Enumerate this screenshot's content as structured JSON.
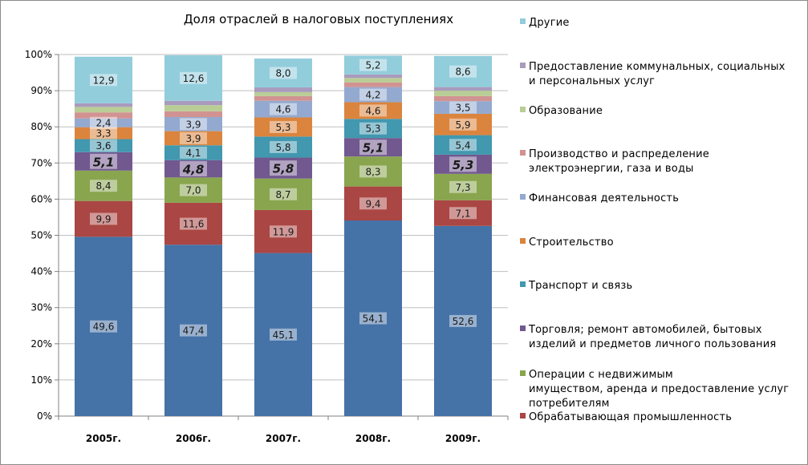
{
  "chart_data": {
    "type": "bar",
    "stacked": true,
    "percent": true,
    "title": "Доля отраслей в налоговых поступлениях",
    "categories": [
      "2005г.",
      "2006г.",
      "2007г.",
      "2008г.",
      "2009г."
    ],
    "yticks": [
      "0%",
      "10%",
      "20%",
      "30%",
      "40%",
      "50%",
      "60%",
      "70%",
      "80%",
      "90%",
      "100%"
    ],
    "ylim": [
      0,
      100
    ],
    "grid": true,
    "legend_position": "right",
    "series": [
      {
        "name": "Обрабатывающая промышленность",
        "color": "#4572A7",
        "values": [
          49.6,
          47.4,
          45.1,
          54.1,
          52.6
        ],
        "labels": [
          "49,6",
          "47,4",
          "45,1",
          "54,1",
          "52,6"
        ]
      },
      {
        "name": "Операции с недвижимым имуществом, аренда и предоставление услуг потребителям",
        "color": "#AA4643",
        "values": [
          9.9,
          11.6,
          11.9,
          9.4,
          7.1
        ],
        "labels": [
          "9,9",
          "11,6",
          "11,9",
          "9,4",
          "7,1"
        ]
      },
      {
        "name": "Торговля; ремонт автомобилей, бытовых изделий и предметов личного пользования",
        "color": "#89A54E",
        "values": [
          8.4,
          7.0,
          8.7,
          8.3,
          7.3
        ],
        "labels": [
          "8,4",
          "7,0",
          "8,7",
          "8,3",
          "7,3"
        ]
      },
      {
        "name": "Транспорт и связь",
        "color": "#71588F",
        "values": [
          5.1,
          4.8,
          5.8,
          5.1,
          5.3
        ],
        "labels": [
          "5,1",
          "4,8",
          "5,8",
          "5,1",
          "5,3"
        ]
      },
      {
        "name": "Строительство",
        "color": "#4198AF",
        "values": [
          3.6,
          4.1,
          5.8,
          5.3,
          5.4
        ],
        "labels": [
          "3,6",
          "4,1",
          "5,8",
          "5,3",
          "5,4"
        ]
      },
      {
        "name": "Финансовая деятельность",
        "color": "#DB843D",
        "values": [
          3.3,
          3.9,
          5.3,
          4.6,
          5.9
        ],
        "labels": [
          "3,3",
          "3,9",
          "5,3",
          "4,6",
          "5,9"
        ]
      },
      {
        "name": "Производство и распределение электроэнергии, газа и воды",
        "color": "#93A9CF",
        "values": [
          2.4,
          3.9,
          4.6,
          4.2,
          3.5
        ],
        "labels": [
          "2,4",
          "3,9",
          "4,6",
          "4,2",
          "3,5"
        ]
      },
      {
        "name": "Образование",
        "color": "#D19392",
        "values": [
          1.7,
          1.6,
          1.3,
          1.3,
          1.4
        ],
        "labels": [
          "",
          "",
          "",
          "",
          ""
        ]
      },
      {
        "name": "Предоставление коммунальных, социальных и персональных услуг",
        "color": "#B9CD96",
        "values": [
          1.5,
          1.7,
          1.1,
          1.2,
          1.5
        ],
        "labels": [
          "",
          "",
          "",
          "",
          ""
        ]
      },
      {
        "name": "Другие",
        "color": "#A99BBD",
        "values": [
          1.0,
          1.2,
          1.3,
          1.0,
          1.0
        ],
        "labels": [
          "",
          "",
          "",
          "",
          ""
        ]
      },
      {
        "name": "",
        "color": "#92CDDC",
        "values": [
          12.9,
          12.6,
          8.0,
          5.2,
          8.6
        ],
        "labels": [
          "12,9",
          "12,6",
          "8,0",
          "5,2",
          "8,6"
        ]
      }
    ],
    "legend": [
      {
        "lines": [
          "Другие"
        ],
        "color": "#92CDDC"
      },
      {
        "lines": [
          "Предоставление коммунальных, социальных",
          "и персональных услуг"
        ],
        "color": "#A99BBD"
      },
      {
        "lines": [
          "Образование"
        ],
        "color": "#B9CD96"
      },
      {
        "lines": [
          "Производство и распределение",
          "электроэнергии, газа и воды"
        ],
        "color": "#D19392"
      },
      {
        "lines": [
          "Финансовая деятельность"
        ],
        "color": "#93A9CF"
      },
      {
        "lines": [
          "Строительство"
        ],
        "color": "#DB843D"
      },
      {
        "lines": [
          "Транспорт и связь"
        ],
        "color": "#4198AF"
      },
      {
        "lines": [
          "Торговля; ремонт автомобилей, бытовых",
          "изделий и предметов личного пользования"
        ],
        "color": "#71588F"
      },
      {
        "lines": [
          "Операции с недвижимым",
          "имуществом, аренда и предоставление услуг",
          "потребителям"
        ],
        "color": "#89A54E"
      },
      {
        "lines": [
          "Обрабатывающая промышленность"
        ],
        "color": "#AA4643"
      }
    ]
  }
}
